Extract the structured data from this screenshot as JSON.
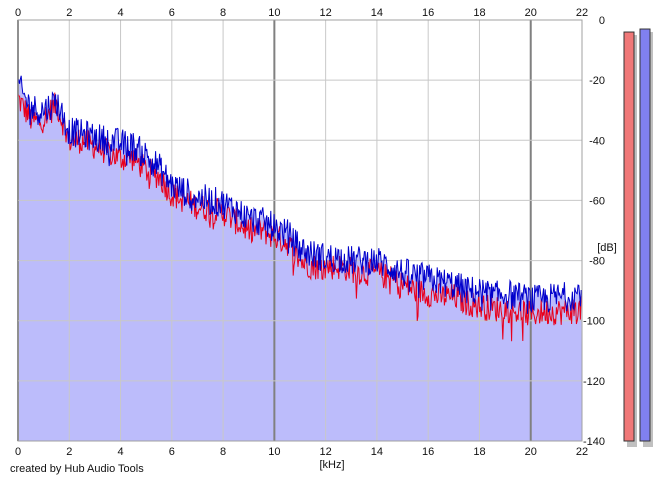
{
  "credit": "created by Hub Audio Tools",
  "chart_data": {
    "type": "area",
    "xlabel": "[kHz]",
    "ylabel": "[dB]",
    "xlim": [
      0,
      22
    ],
    "ylim": [
      -140,
      0
    ],
    "x_ticks": [
      "0",
      "2",
      "4",
      "6",
      "8",
      "10",
      "12",
      "14",
      "16",
      "18",
      "20",
      "22"
    ],
    "y_ticks": [
      "0",
      "-20",
      "-40",
      "-60",
      "-80",
      "-100",
      "-120",
      "-140"
    ],
    "grid": true,
    "colors": {
      "fill": "#bcbcfb",
      "red": "#e8001c",
      "blue": "#0000cc",
      "meter_left": "#f07878",
      "meter_right": "#8080f0",
      "grid": "#c8c8c8",
      "grid_major": "#808080"
    },
    "series": [
      {
        "color": "red",
        "x": [
          0.0,
          0.2,
          0.5,
          0.8,
          1.0,
          1.5,
          2.0,
          2.5,
          3.0,
          3.5,
          4.0,
          4.5,
          5.0,
          5.5,
          6.0,
          6.5,
          7.0,
          7.5,
          8.0,
          8.5,
          9.0,
          9.5,
          10.0,
          10.5,
          11.0,
          11.5,
          12.0,
          12.5,
          13.0,
          13.5,
          14.0,
          14.5,
          15.0,
          15.5,
          16.0,
          16.5,
          17.0,
          17.5,
          18.0,
          18.5,
          19.0,
          19.5,
          20.0,
          20.5,
          21.0,
          21.5,
          22.0
        ],
        "values": [
          -26,
          -29,
          -33,
          -34,
          -33,
          -28,
          -40,
          -40,
          -42,
          -44,
          -46,
          -46,
          -50,
          -52,
          -58,
          -60,
          -62,
          -63,
          -64,
          -67,
          -70,
          -70,
          -72,
          -74,
          -80,
          -82,
          -82,
          -82,
          -83,
          -84,
          -84,
          -86,
          -88,
          -90,
          -91,
          -92,
          -92,
          -94,
          -95,
          -96,
          -96,
          -97,
          -98,
          -97,
          -97,
          -97,
          -96
        ]
      },
      {
        "color": "blue",
        "x": [
          0.0,
          0.2,
          0.5,
          0.8,
          1.0,
          1.5,
          2.0,
          2.5,
          3.0,
          3.5,
          4.0,
          4.5,
          5.0,
          5.5,
          6.0,
          6.5,
          7.0,
          7.5,
          8.0,
          8.5,
          9.0,
          9.5,
          10.0,
          10.5,
          11.0,
          11.5,
          12.0,
          12.5,
          13.0,
          13.5,
          14.0,
          14.5,
          15.0,
          15.5,
          16.0,
          16.5,
          17.0,
          17.5,
          18.0,
          18.5,
          19.0,
          19.5,
          20.0,
          20.5,
          21.0,
          21.5,
          22.0
        ],
        "values": [
          -21,
          -25,
          -29,
          -30,
          -30,
          -27,
          -37,
          -38,
          -39,
          -40,
          -41,
          -42,
          -45,
          -49,
          -55,
          -57,
          -59,
          -60,
          -61,
          -63,
          -66,
          -67,
          -69,
          -71,
          -76,
          -78,
          -79,
          -79,
          -80,
          -80,
          -80,
          -82,
          -84,
          -85,
          -86,
          -87,
          -88,
          -90,
          -90,
          -92,
          -91,
          -92,
          -93,
          -93,
          -92,
          -92,
          -90
        ]
      }
    ],
    "meters": [
      {
        "color": "meter_left",
        "level": -4
      },
      {
        "color": "meter_right",
        "level": -3
      }
    ]
  }
}
